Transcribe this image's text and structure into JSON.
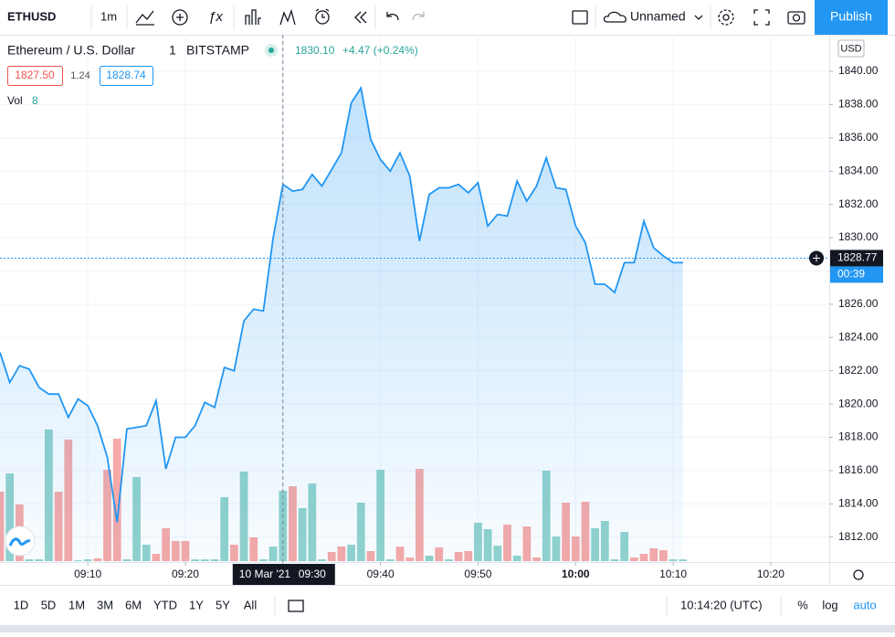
{
  "toolbar": {
    "symbol": "ETHUSD",
    "interval": "1m",
    "layout_name": "Unnamed",
    "publish": "Publish"
  },
  "legend": {
    "name": "Ethereum / U.S. Dollar",
    "interval": "1",
    "exchange": "BITSTAMP",
    "last": "1830.10",
    "change": "+4.47 (+0.24%)",
    "bid": "1827.50",
    "spread": "1.24",
    "ask": "1828.74",
    "vol_label": "Vol",
    "vol_value": "8"
  },
  "chart_data": [
    {
      "type": "line",
      "color": "#2196f3",
      "x": [
        "09:01",
        "09:02",
        "09:03",
        "09:04",
        "09:05",
        "09:06",
        "09:07",
        "09:08",
        "09:09",
        "09:10",
        "09:11",
        "09:12",
        "09:13",
        "09:14",
        "09:15",
        "09:16",
        "09:17",
        "09:18",
        "09:19",
        "09:20",
        "09:21",
        "09:22",
        "09:23",
        "09:24",
        "09:25",
        "09:26",
        "09:27",
        "09:28",
        "09:29",
        "09:30",
        "09:31",
        "09:32",
        "09:33",
        "09:34",
        "09:35",
        "09:36",
        "09:37",
        "09:38",
        "09:39",
        "09:40",
        "09:41",
        "09:42",
        "09:43",
        "09:44",
        "09:45",
        "09:46",
        "09:47",
        "09:48",
        "09:49",
        "09:50",
        "09:51",
        "09:52",
        "09:53",
        "09:54",
        "09:55",
        "09:56",
        "09:57",
        "09:58",
        "09:59",
        "10:00",
        "10:01",
        "10:02",
        "10:03",
        "10:04",
        "10:05",
        "10:06",
        "10:07",
        "10:08",
        "10:09",
        "10:10",
        "10:11"
      ],
      "values": [
        1823.1,
        1821.3,
        1822.3,
        1822.1,
        1821.0,
        1820.6,
        1820.6,
        1819.2,
        1820.3,
        1819.9,
        1818.7,
        1816.8,
        1812.9,
        1818.5,
        1818.6,
        1818.7,
        1820.2,
        1816.1,
        1818.0,
        1818.0,
        1818.7,
        1820.1,
        1819.8,
        1822.2,
        1822.0,
        1825.0,
        1825.7,
        1825.6,
        1830.0,
        1833.2,
        1832.8,
        1832.9,
        1833.8,
        1833.1,
        1834.1,
        1835.1,
        1838.1,
        1839.0,
        1835.9,
        1834.7,
        1834.0,
        1835.1,
        1833.7,
        1829.8,
        1832.6,
        1833.0,
        1833.0,
        1833.2,
        1832.7,
        1833.3,
        1830.7,
        1831.4,
        1831.3,
        1833.4,
        1832.2,
        1833.1,
        1834.8,
        1833.0,
        1832.9,
        1830.7,
        1829.7,
        1827.2,
        1827.2,
        1826.7,
        1828.5,
        1828.5,
        1831.0,
        1829.4,
        1828.9,
        1828.5,
        1828.5
      ],
      "xlim": [
        "09:01",
        "10:26"
      ],
      "xticks": [
        "09:10",
        "09:20",
        "09:30",
        "09:40",
        "09:50",
        "10:00",
        "10:10",
        "10:20"
      ],
      "ylim": [
        1810.5,
        1842.2
      ],
      "yticks": [
        {
          "value": 1812,
          "label": "1812.00"
        },
        {
          "value": 1814,
          "label": "1814.00"
        },
        {
          "value": 1816,
          "label": "1816.00"
        },
        {
          "value": 1818,
          "label": "1818.00"
        },
        {
          "value": 1820,
          "label": "1820.00"
        },
        {
          "value": 1822,
          "label": "1822.00"
        },
        {
          "value": 1824,
          "label": "1824.00"
        },
        {
          "value": 1826,
          "label": "1826.00"
        },
        {
          "value": 1828,
          "label": "1828.00"
        },
        {
          "value": 1830,
          "label": "1830.00"
        },
        {
          "value": 1832,
          "label": "1832.00"
        },
        {
          "value": 1834,
          "label": "1834.00"
        },
        {
          "value": 1836,
          "label": "1836.00"
        },
        {
          "value": 1838,
          "label": "1838.00"
        },
        {
          "value": 1840,
          "label": "1840.00"
        }
      ],
      "grid": true,
      "currency": "USD",
      "last_price": 1828.77,
      "countdown": "00:39",
      "crosshair": {
        "date": "10 Mar '21",
        "time": "09:30"
      }
    },
    {
      "type": "bar",
      "ylim": [
        0,
        160
      ],
      "values": [
        76,
        96,
        62,
        2,
        2,
        144,
        76,
        133,
        1,
        2,
        3,
        100,
        134,
        2,
        92,
        18,
        8,
        36,
        22,
        22,
        2,
        2,
        2,
        70,
        18,
        98,
        26,
        2,
        16,
        77,
        82,
        58,
        85,
        2,
        10,
        16,
        18,
        64,
        11,
        100,
        2,
        16,
        4,
        101,
        6,
        15,
        2,
        10,
        11,
        42,
        35,
        17,
        40,
        6,
        38,
        4,
        99,
        27,
        64,
        27,
        65,
        36,
        44,
        2,
        32,
        4,
        8,
        14,
        12,
        2,
        2
      ],
      "colors": [
        "#f7a9a7",
        "#92d2cc",
        "#f7a9a7",
        "#92d2cc",
        "#92d2cc",
        "#92d2cc",
        "#f7a9a7",
        "#f7a9a7",
        "#92d2cc",
        "#92d2cc",
        "#f7a9a7",
        "#f7a9a7",
        "#f7a9a7",
        "#92d2cc",
        "#92d2cc",
        "#92d2cc",
        "#f7a9a7",
        "#f7a9a7",
        "#f7a9a7",
        "#f7a9a7",
        "#92d2cc",
        "#92d2cc",
        "#92d2cc",
        "#92d2cc",
        "#f7a9a7",
        "#92d2cc",
        "#f7a9a7",
        "#92d2cc",
        "#92d2cc",
        "#92d2cc",
        "#f7a9a7",
        "#92d2cc",
        "#92d2cc",
        "#92d2cc",
        "#f7a9a7",
        "#f7a9a7",
        "#92d2cc",
        "#92d2cc",
        "#f7a9a7",
        "#92d2cc",
        "#92d2cc",
        "#f7a9a7",
        "#f7a9a7",
        "#f7a9a7",
        "#92d2cc",
        "#f7a9a7",
        "#92d2cc",
        "#f7a9a7",
        "#f7a9a7",
        "#92d2cc",
        "#92d2cc",
        "#92d2cc",
        "#f7a9a7",
        "#92d2cc",
        "#f7a9a7",
        "#f7a9a7",
        "#92d2cc",
        "#92d2cc",
        "#f7a9a7",
        "#f7a9a7",
        "#f7a9a7",
        "#92d2cc",
        "#92d2cc",
        "#92d2cc",
        "#92d2cc",
        "#f7a9a7",
        "#f7a9a7",
        "#f7a9a7",
        "#f7a9a7",
        "#92d2cc",
        "#92d2cc"
      ]
    }
  ],
  "bottom_bar": {
    "ranges": [
      "1D",
      "5D",
      "1M",
      "3M",
      "6M",
      "YTD",
      "1Y",
      "5Y",
      "All"
    ],
    "clock": "10:14:20 (UTC)",
    "percent": "%",
    "log": "log",
    "auto": "auto"
  }
}
